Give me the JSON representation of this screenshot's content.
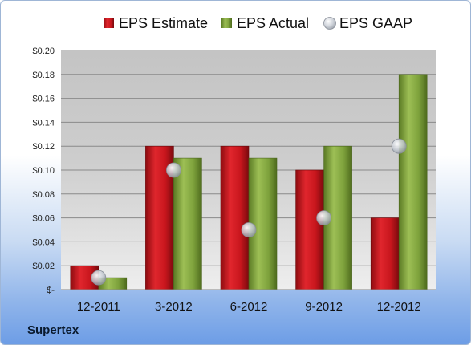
{
  "company": "Supertex",
  "colors": {
    "estimate": "#c8161d",
    "actual": "#7ea23c",
    "gaap": "#b9bec6"
  },
  "chart_data": {
    "type": "bar",
    "title": "",
    "xlabel": "",
    "ylabel": "",
    "ylim": [
      0,
      0.2
    ],
    "yticks": [
      0,
      0.02,
      0.04,
      0.06,
      0.08,
      0.1,
      0.12,
      0.14,
      0.16,
      0.18,
      0.2
    ],
    "ytick_labels": [
      "$-",
      "$0.02",
      "$0.04",
      "$0.06",
      "$0.08",
      "$0.10",
      "$0.12",
      "$0.14",
      "$0.16",
      "$0.18",
      "$0.20"
    ],
    "categories": [
      "12-2011",
      "3-2012",
      "6-2012",
      "9-2012",
      "12-2012"
    ],
    "legend_position": "top",
    "grid": true,
    "series": [
      {
        "name": "EPS Estimate",
        "kind": "bar",
        "values": [
          0.02,
          0.12,
          0.12,
          0.1,
          0.06
        ]
      },
      {
        "name": "EPS Actual",
        "kind": "bar",
        "values": [
          0.01,
          0.11,
          0.11,
          0.12,
          0.18
        ]
      },
      {
        "name": "EPS GAAP",
        "kind": "marker",
        "values": [
          0.01,
          0.1,
          0.05,
          0.06,
          0.12
        ]
      }
    ]
  }
}
